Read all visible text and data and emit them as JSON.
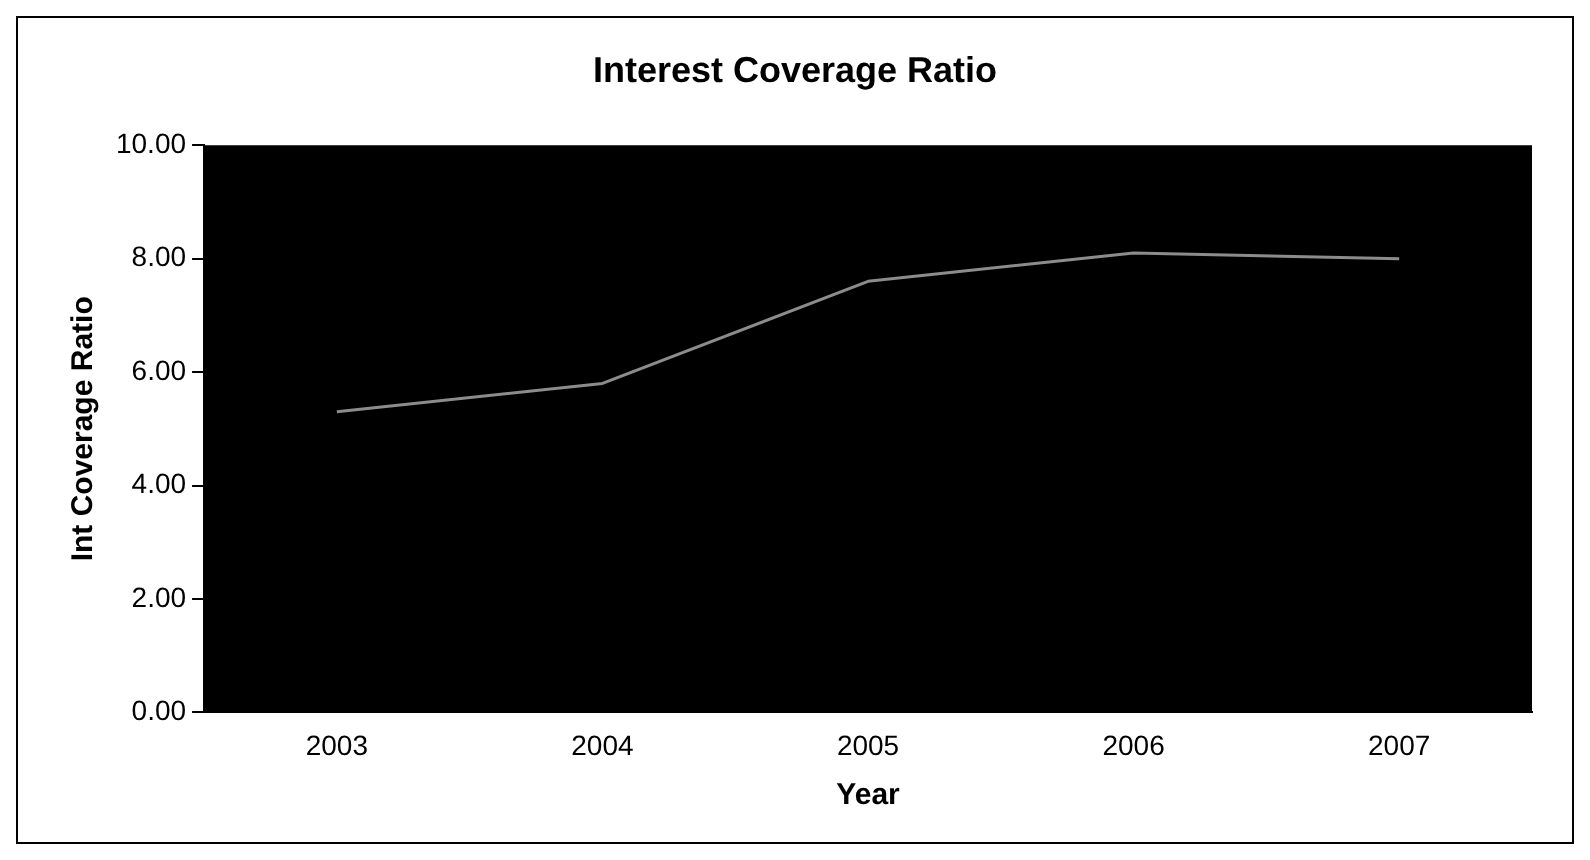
{
  "chart_data": {
    "type": "line",
    "title": "Interest Coverage Ratio",
    "xlabel": "Year",
    "ylabel": "Int Coverage Ratio",
    "categories": [
      "2003",
      "2004",
      "2005",
      "2006",
      "2007"
    ],
    "series": [
      {
        "color": "#8c8c8c",
        "values": [
          5.3,
          5.8,
          7.6,
          8.1,
          8.0
        ]
      }
    ],
    "ylim": [
      0,
      10
    ],
    "yticks": [
      {
        "value": 0,
        "label": "0.00"
      },
      {
        "value": 2,
        "label": "2.00"
      },
      {
        "value": 4,
        "label": "4.00"
      },
      {
        "value": 6,
        "label": "6.00"
      },
      {
        "value": 8,
        "label": "8.00"
      },
      {
        "value": 10,
        "label": "10.00"
      }
    ],
    "marker": "none",
    "line_style": "solid"
  }
}
